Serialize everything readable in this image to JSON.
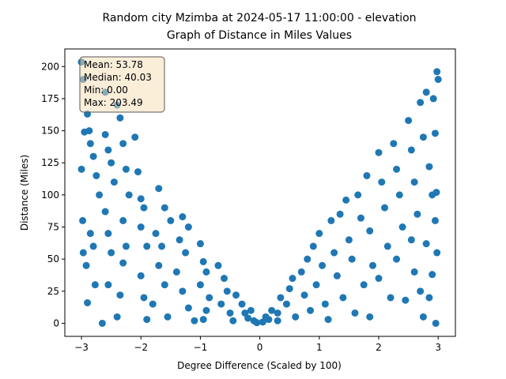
{
  "chart_data": {
    "type": "scatter",
    "title": "Random city Mzimba at 2024-05-17 11:00:00  - elevation",
    "subtitle": "Graph of Distance in Miles Values",
    "x_label": "Degree Difference (Scaled by 100)",
    "y_label": "Distance (Miles)",
    "annotations": [
      "Mean: 53.78",
      "Median: 40.03",
      "Min: 0.00",
      "Max: 203.49"
    ],
    "color": "#1f77b4",
    "xlim": [
      -3.28,
      3.29
    ],
    "ylim": [
      -10.17,
      213.7
    ],
    "xticks": [
      {
        "value": -3,
        "label": "−3"
      },
      {
        "value": -2,
        "label": "−2"
      },
      {
        "value": -1,
        "label": "−1"
      },
      0,
      1,
      2,
      3
    ],
    "yticks": [
      0,
      25,
      50,
      75,
      100,
      125,
      150,
      175,
      200
    ],
    "x": [
      -3.0,
      -2.97,
      -2.9,
      -2.95,
      -3.0,
      -2.98,
      -2.97,
      -2.92,
      -2.9,
      -2.87,
      -2.85,
      -2.8,
      -2.75,
      -2.7,
      -2.85,
      -2.8,
      -2.77,
      -2.6,
      -2.6,
      -2.55,
      -2.5,
      -2.45,
      -2.6,
      -2.55,
      -2.5,
      -2.55,
      -2.65,
      -2.4,
      -2.35,
      -2.3,
      -2.25,
      -2.2,
      -2.3,
      -2.25,
      -2.3,
      -2.4,
      -2.35,
      -2.1,
      -2.05,
      -2.0,
      -1.95,
      -2.0,
      -1.9,
      -2.0,
      -1.95,
      -1.9,
      -1.7,
      -1.6,
      -1.5,
      -1.75,
      -1.65,
      -1.7,
      -1.6,
      -1.8,
      -1.55,
      -1.3,
      -1.2,
      -1.35,
      -1.25,
      -1.4,
      -1.3,
      -1.2,
      -1.1,
      -1.0,
      -0.95,
      -0.9,
      -1.0,
      -0.85,
      -0.9,
      -0.95,
      -0.7,
      -0.6,
      -0.55,
      -0.65,
      -0.5,
      -0.45,
      -0.4,
      -0.3,
      -0.25,
      -0.2,
      -0.15,
      -0.1,
      -0.05,
      0.05,
      0.1,
      0.15,
      0.2,
      0.3,
      0.35,
      0.3,
      0.45,
      0.5,
      0.55,
      0.6,
      0.7,
      0.75,
      0.8,
      0.9,
      0.85,
      0.95,
      1.0,
      1.05,
      1.1,
      1.15,
      1.2,
      1.25,
      1.3,
      1.35,
      1.4,
      1.45,
      1.5,
      1.55,
      1.6,
      1.65,
      1.7,
      1.75,
      1.8,
      1.85,
      1.9,
      1.85,
      2.0,
      2.05,
      2.1,
      2.15,
      2.0,
      2.2,
      2.25,
      2.3,
      2.35,
      2.4,
      2.3,
      2.45,
      2.5,
      2.55,
      2.6,
      2.65,
      2.55,
      2.6,
      2.7,
      2.7,
      2.75,
      2.8,
      2.85,
      2.9,
      2.8,
      2.85,
      2.75,
      2.92,
      2.95,
      2.98,
      3.0,
      2.97,
      2.95,
      2.98,
      2.96,
      2.9
    ],
    "values": [
      203.5,
      190,
      163,
      149,
      120,
      80,
      55,
      45,
      16,
      150,
      140,
      130,
      115,
      100,
      70,
      60,
      30,
      180,
      147,
      135,
      125,
      110,
      87,
      70,
      55,
      30,
      0,
      170,
      160,
      140,
      120,
      100,
      80,
      60,
      47,
      5,
      22,
      145,
      118,
      97,
      90,
      75,
      60,
      37,
      20,
      3,
      105,
      90,
      80,
      70,
      60,
      45,
      30,
      15,
      5,
      83,
      75,
      65,
      55,
      40,
      25,
      12,
      2,
      62,
      48,
      40,
      30,
      20,
      10,
      3,
      45,
      35,
      25,
      15,
      8,
      2,
      22,
      15,
      8,
      4,
      10,
      2,
      0.5,
      1,
      5,
      3,
      10,
      8,
      20,
      2,
      15,
      27,
      35,
      5,
      40,
      22,
      50,
      60,
      10,
      30,
      70,
      45,
      15,
      3,
      80,
      55,
      37,
      85,
      20,
      96,
      65,
      50,
      8,
      100,
      82,
      30,
      115,
      72,
      45,
      5,
      133,
      110,
      90,
      60,
      35,
      20,
      140,
      120,
      100,
      75,
      50,
      18,
      158,
      135,
      110,
      85,
      65,
      40,
      25,
      172,
      145,
      180,
      122,
      100,
      62,
      20,
      5,
      175,
      148,
      196,
      190,
      102,
      80,
      55,
      0,
      38
    ]
  }
}
